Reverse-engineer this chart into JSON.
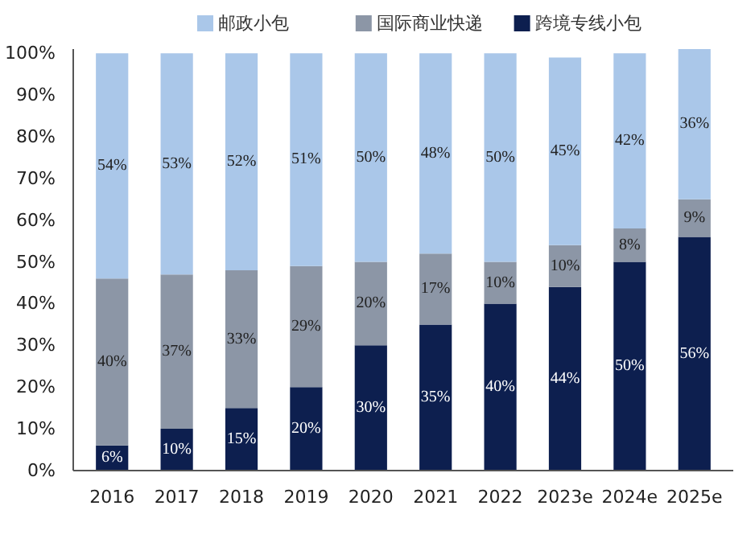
{
  "chart_data": {
    "type": "bar",
    "stacked": true,
    "categories": [
      "2016",
      "2017",
      "2018",
      "2019",
      "2020",
      "2021",
      "2022",
      "2023e",
      "2024e",
      "2025e"
    ],
    "series": [
      {
        "name": "跨境专线小包",
        "color": "#0d1f4f",
        "values": [
          6,
          10,
          15,
          20,
          30,
          35,
          40,
          44,
          50,
          56
        ],
        "value_labels": [
          "6%",
          "10%",
          "15%",
          "20%",
          "30%",
          "35%",
          "40%",
          "44%",
          "50%",
          "56%"
        ]
      },
      {
        "name": "国际商业快递",
        "color": "#8c96a6",
        "values": [
          40,
          37,
          33,
          29,
          20,
          17,
          10,
          10,
          8,
          9
        ],
        "value_labels": [
          "40%",
          "37%",
          "33%",
          "29%",
          "20%",
          "17%",
          "10%",
          "10%",
          "8%",
          "9%"
        ]
      },
      {
        "name": "邮政小包",
        "color": "#aac7e9",
        "values": [
          54,
          53,
          52,
          51,
          50,
          48,
          50,
          45,
          42,
          36
        ],
        "value_labels": [
          "54%",
          "53%",
          "52%",
          "51%",
          "50%",
          "48%",
          "50%",
          "45%",
          "42%",
          "36%"
        ]
      }
    ],
    "ylim": [
      0,
      101
    ],
    "yticks": [
      {
        "value": 0,
        "label": "0%"
      },
      {
        "value": 10,
        "label": "10%"
      },
      {
        "value": 20,
        "label": "20%"
      },
      {
        "value": 30,
        "label": "30%"
      },
      {
        "value": 40,
        "label": "40%"
      },
      {
        "value": 50,
        "label": "50%"
      },
      {
        "value": 60,
        "label": "60%"
      },
      {
        "value": 70,
        "label": "70%"
      },
      {
        "value": 80,
        "label": "80%"
      },
      {
        "value": 90,
        "label": "90%"
      },
      {
        "value": 100,
        "label": "100%"
      }
    ],
    "grid": false,
    "legend": "top"
  }
}
